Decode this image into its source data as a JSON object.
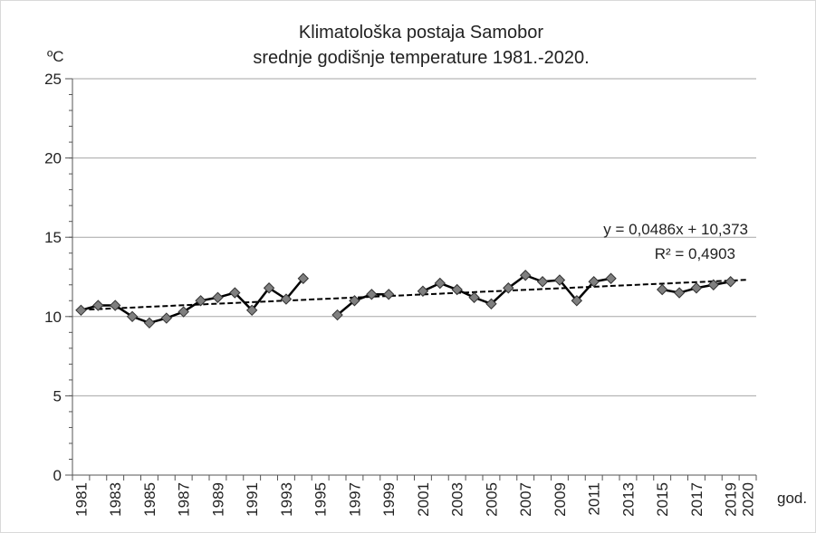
{
  "chart_data": {
    "type": "line",
    "title": "Klimatološka postaja Samobor",
    "subtitle": "srednje godišnje temperature 1981.-2020.",
    "y_label": "ºC",
    "x_label": "god.",
    "categories": [
      "1981",
      null,
      "1983",
      null,
      "1985",
      null,
      "1987",
      null,
      "1989",
      null,
      "1991",
      null,
      "1993",
      null,
      "1995",
      null,
      "1997",
      null,
      "1999",
      null,
      "2001",
      null,
      "2003",
      null,
      "2005",
      null,
      "2007",
      null,
      "2009",
      null,
      "2011",
      null,
      "2013",
      null,
      "2015",
      null,
      "2017",
      null,
      "2019",
      "2020"
    ],
    "series": [
      {
        "name": "srednje godišnje temperature",
        "color": "#000000",
        "marker_color": "#7f7f7f",
        "values": [
          10.4,
          10.7,
          10.7,
          10.0,
          9.6,
          9.9,
          10.3,
          11.0,
          11.2,
          11.5,
          10.4,
          11.8,
          11.1,
          12.4,
          null,
          10.1,
          11.0,
          11.4,
          11.4,
          null,
          11.6,
          12.1,
          11.7,
          11.2,
          10.8,
          11.8,
          12.6,
          12.2,
          12.3,
          11.0,
          12.2,
          12.4,
          null,
          null,
          11.7,
          11.5,
          11.8,
          12.0,
          12.2,
          null
        ]
      }
    ],
    "trendline": {
      "equation": "y = 0,0486x + 10,373",
      "r_squared": "R² = 0,4903",
      "slope": 0.0486,
      "intercept": 10.373
    },
    "ylim": [
      0,
      25
    ],
    "yticks": [
      0,
      5,
      10,
      15,
      20,
      25
    ],
    "grid": true
  }
}
